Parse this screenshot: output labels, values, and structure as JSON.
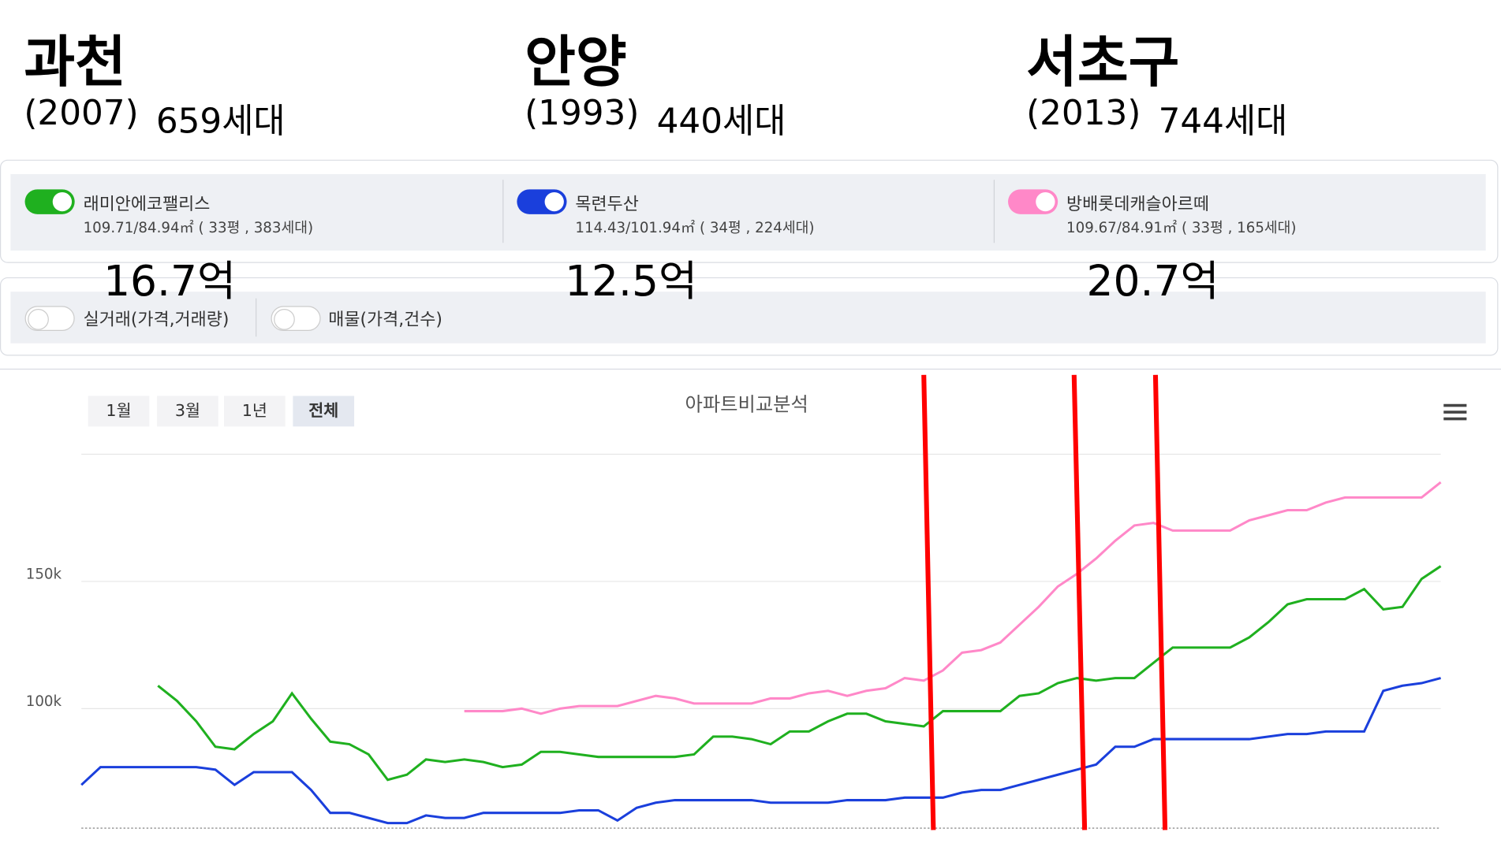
{
  "headers": [
    {
      "city": "과천",
      "year": "(2007)",
      "households": "659세대"
    },
    {
      "city": "안양",
      "year": "(1993)",
      "households": "440세대"
    },
    {
      "city": "서초구",
      "year": "(2013)",
      "households": "744세대"
    }
  ],
  "apartments": [
    {
      "spec": "109.71/84.94㎡ ( 33평 , 383세대)",
      "price": "16.7억"
    },
    {
      "spec": "114.43/101.94㎡ ( 34평 , 224세대)",
      "price": "12.5억"
    },
    {
      "spec": "109.67/84.91㎡ ( 33평 , 165세대)",
      "price": "20.7억"
    }
  ],
  "toggles": [
    "실거래(가격,거래량)",
    "매물(가격,건수)"
  ],
  "periods": [
    "1월",
    "3월",
    "1년",
    "전체"
  ],
  "chart_data": {
    "type": "line",
    "title": "아파트비교분석",
    "ylim": [
      53,
      200
    ],
    "yticks": [
      {
        "value": 100,
        "label": "100k"
      },
      {
        "value": 150,
        "label": "150k"
      }
    ],
    "grid": true,
    "series": [
      {
        "name": "래미안에코팰리스",
        "color": "#1fb01f",
        "values": [
          null,
          null,
          null,
          null,
          109,
          103,
          95,
          85,
          84,
          90,
          95,
          106,
          96,
          87,
          86,
          82,
          72,
          74,
          80,
          79,
          80,
          79,
          77,
          78,
          83,
          83,
          82,
          81,
          81,
          81,
          81,
          81,
          82,
          89,
          89,
          88,
          86,
          91,
          91,
          95,
          98,
          98,
          95,
          94,
          93,
          99,
          99,
          99,
          99,
          105,
          106,
          110,
          112,
          111,
          112,
          112,
          118,
          124,
          124,
          124,
          124,
          128,
          134,
          141,
          143,
          143,
          143,
          147,
          139,
          140,
          151,
          156
        ]
      },
      {
        "name": "목련두산",
        "color": "#1a3fdc",
        "values": [
          70,
          77,
          77,
          77,
          77,
          77,
          77,
          76,
          70,
          75,
          75,
          75,
          68,
          59,
          59,
          57,
          55,
          55,
          58,
          57,
          57,
          59,
          59,
          59,
          59,
          59,
          60,
          60,
          56,
          61,
          63,
          64,
          64,
          64,
          64,
          64,
          63,
          63,
          63,
          63,
          64,
          64,
          64,
          65,
          65,
          65,
          67,
          68,
          68,
          70,
          72,
          74,
          76,
          78,
          85,
          85,
          88,
          88,
          88,
          88,
          88,
          88,
          89,
          90,
          90,
          91,
          91,
          91,
          107,
          109,
          110,
          112
        ]
      },
      {
        "name": "방배롯데캐슬아르떼",
        "color": "#ff88c8",
        "values": [
          null,
          null,
          null,
          null,
          null,
          null,
          null,
          null,
          null,
          null,
          null,
          null,
          null,
          null,
          null,
          null,
          null,
          null,
          null,
          null,
          99,
          99,
          99,
          100,
          98,
          100,
          101,
          101,
          101,
          103,
          105,
          104,
          102,
          102,
          102,
          102,
          104,
          104,
          106,
          107,
          105,
          107,
          108,
          112,
          111,
          115,
          122,
          123,
          126,
          133,
          140,
          148,
          153,
          159,
          166,
          172,
          173,
          170,
          170,
          170,
          170,
          174,
          176,
          178,
          178,
          181,
          183,
          183,
          183,
          183,
          183,
          189
        ]
      }
    ]
  }
}
